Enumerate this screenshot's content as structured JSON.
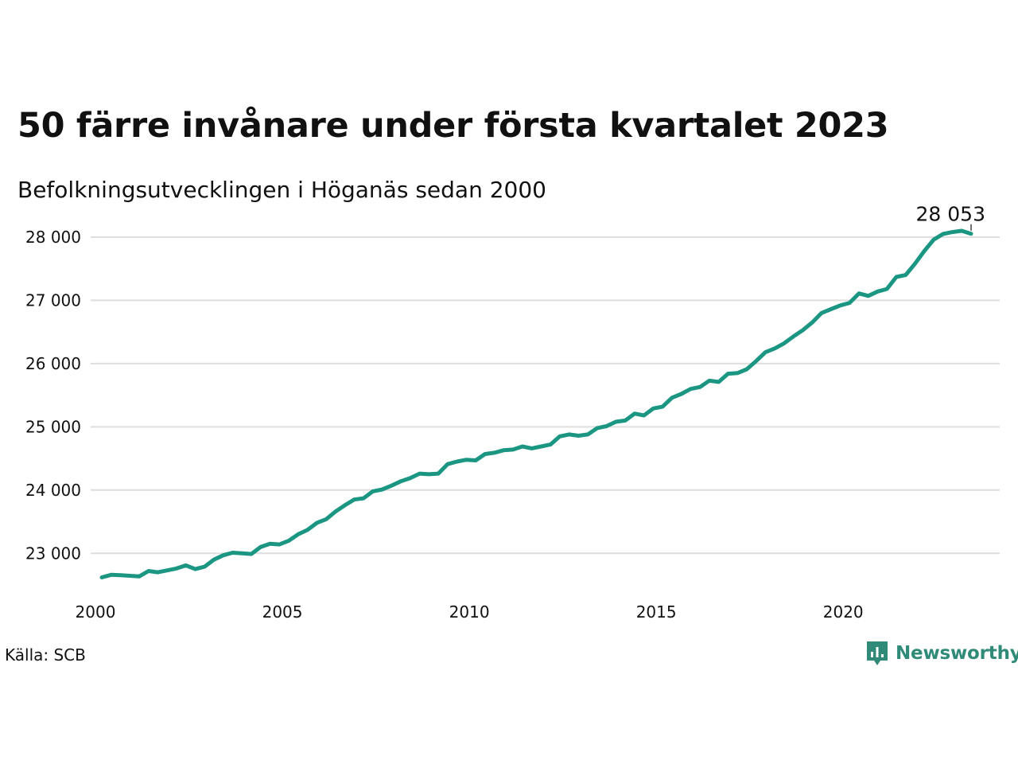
{
  "chart_data": {
    "type": "line",
    "title": "50 färre invånare under första kvartalet 2023",
    "subtitle": "Befolkningsutvecklingen i Höganäs sedan 2000",
    "xlabel": "",
    "ylabel": "",
    "xlim": [
      2000.0,
      2023.25
    ],
    "ylim": [
      22500,
      28100
    ],
    "x_ticks": [
      2000,
      2005,
      2010,
      2015,
      2020
    ],
    "x_tick_labels": [
      "2000",
      "2005",
      "2010",
      "2015",
      "2020"
    ],
    "y_ticks": [
      23000,
      24000,
      25000,
      26000,
      27000,
      28000
    ],
    "y_tick_labels": [
      "23 000",
      "24 000",
      "25 000",
      "26 000",
      "27 000",
      "28 000"
    ],
    "grid": true,
    "legend": "none",
    "series": [
      {
        "color": "#1b9683",
        "x": [
          2000.0,
          2000.25,
          2000.5,
          2000.75,
          2001.0,
          2001.25,
          2001.5,
          2001.75,
          2002.0,
          2002.25,
          2002.5,
          2002.75,
          2003.0,
          2003.25,
          2003.5,
          2003.75,
          2004.0,
          2004.25,
          2004.5,
          2004.75,
          2005.0,
          2005.25,
          2005.5,
          2005.75,
          2006.0,
          2006.25,
          2006.5,
          2006.75,
          2007.0,
          2007.25,
          2007.5,
          2007.75,
          2008.0,
          2008.25,
          2008.5,
          2008.75,
          2009.0,
          2009.25,
          2009.5,
          2009.75,
          2010.0,
          2010.25,
          2010.5,
          2010.75,
          2011.0,
          2011.25,
          2011.5,
          2011.75,
          2012.0,
          2012.25,
          2012.5,
          2012.75,
          2013.0,
          2013.25,
          2013.5,
          2013.75,
          2014.0,
          2014.25,
          2014.5,
          2014.75,
          2015.0,
          2015.25,
          2015.5,
          2015.75,
          2016.0,
          2016.25,
          2016.5,
          2016.75,
          2017.0,
          2017.25,
          2017.5,
          2017.75,
          2018.0,
          2018.25,
          2018.5,
          2018.75,
          2019.0,
          2019.25,
          2019.5,
          2019.75,
          2020.0,
          2020.25,
          2020.5,
          2020.75,
          2021.0,
          2021.25,
          2021.5,
          2021.75,
          2022.0,
          2022.25,
          2022.5,
          2022.75,
          2023.0,
          2023.25
        ],
        "values": [
          22620,
          22660,
          22655,
          22645,
          22635,
          22720,
          22700,
          22730,
          22760,
          22810,
          22750,
          22790,
          22900,
          22970,
          23010,
          23000,
          22990,
          23100,
          23150,
          23140,
          23200,
          23300,
          23370,
          23480,
          23540,
          23660,
          23760,
          23850,
          23870,
          23980,
          24010,
          24070,
          24140,
          24190,
          24260,
          24250,
          24260,
          24410,
          24450,
          24480,
          24470,
          24570,
          24590,
          24630,
          24640,
          24690,
          24660,
          24690,
          24720,
          24850,
          24880,
          24860,
          24880,
          24980,
          25010,
          25080,
          25100,
          25210,
          25180,
          25290,
          25320,
          25460,
          25520,
          25600,
          25630,
          25730,
          25710,
          25840,
          25850,
          25910,
          26040,
          26180,
          26240,
          26320,
          26430,
          26530,
          26650,
          26800,
          26860,
          26920,
          26960,
          27110,
          27070,
          27140,
          27180,
          27370,
          27400,
          27580,
          27780,
          27960,
          28050,
          28080,
          28100,
          28053
        ]
      }
    ],
    "annotations": [
      {
        "label": "28 053",
        "x": 2023.25,
        "y": 28053
      }
    ],
    "source": "Källa: SCB"
  },
  "brand": {
    "name": "Newsworthy",
    "color": "#2f8a78",
    "icon": "newsworthy-logo-icon"
  }
}
